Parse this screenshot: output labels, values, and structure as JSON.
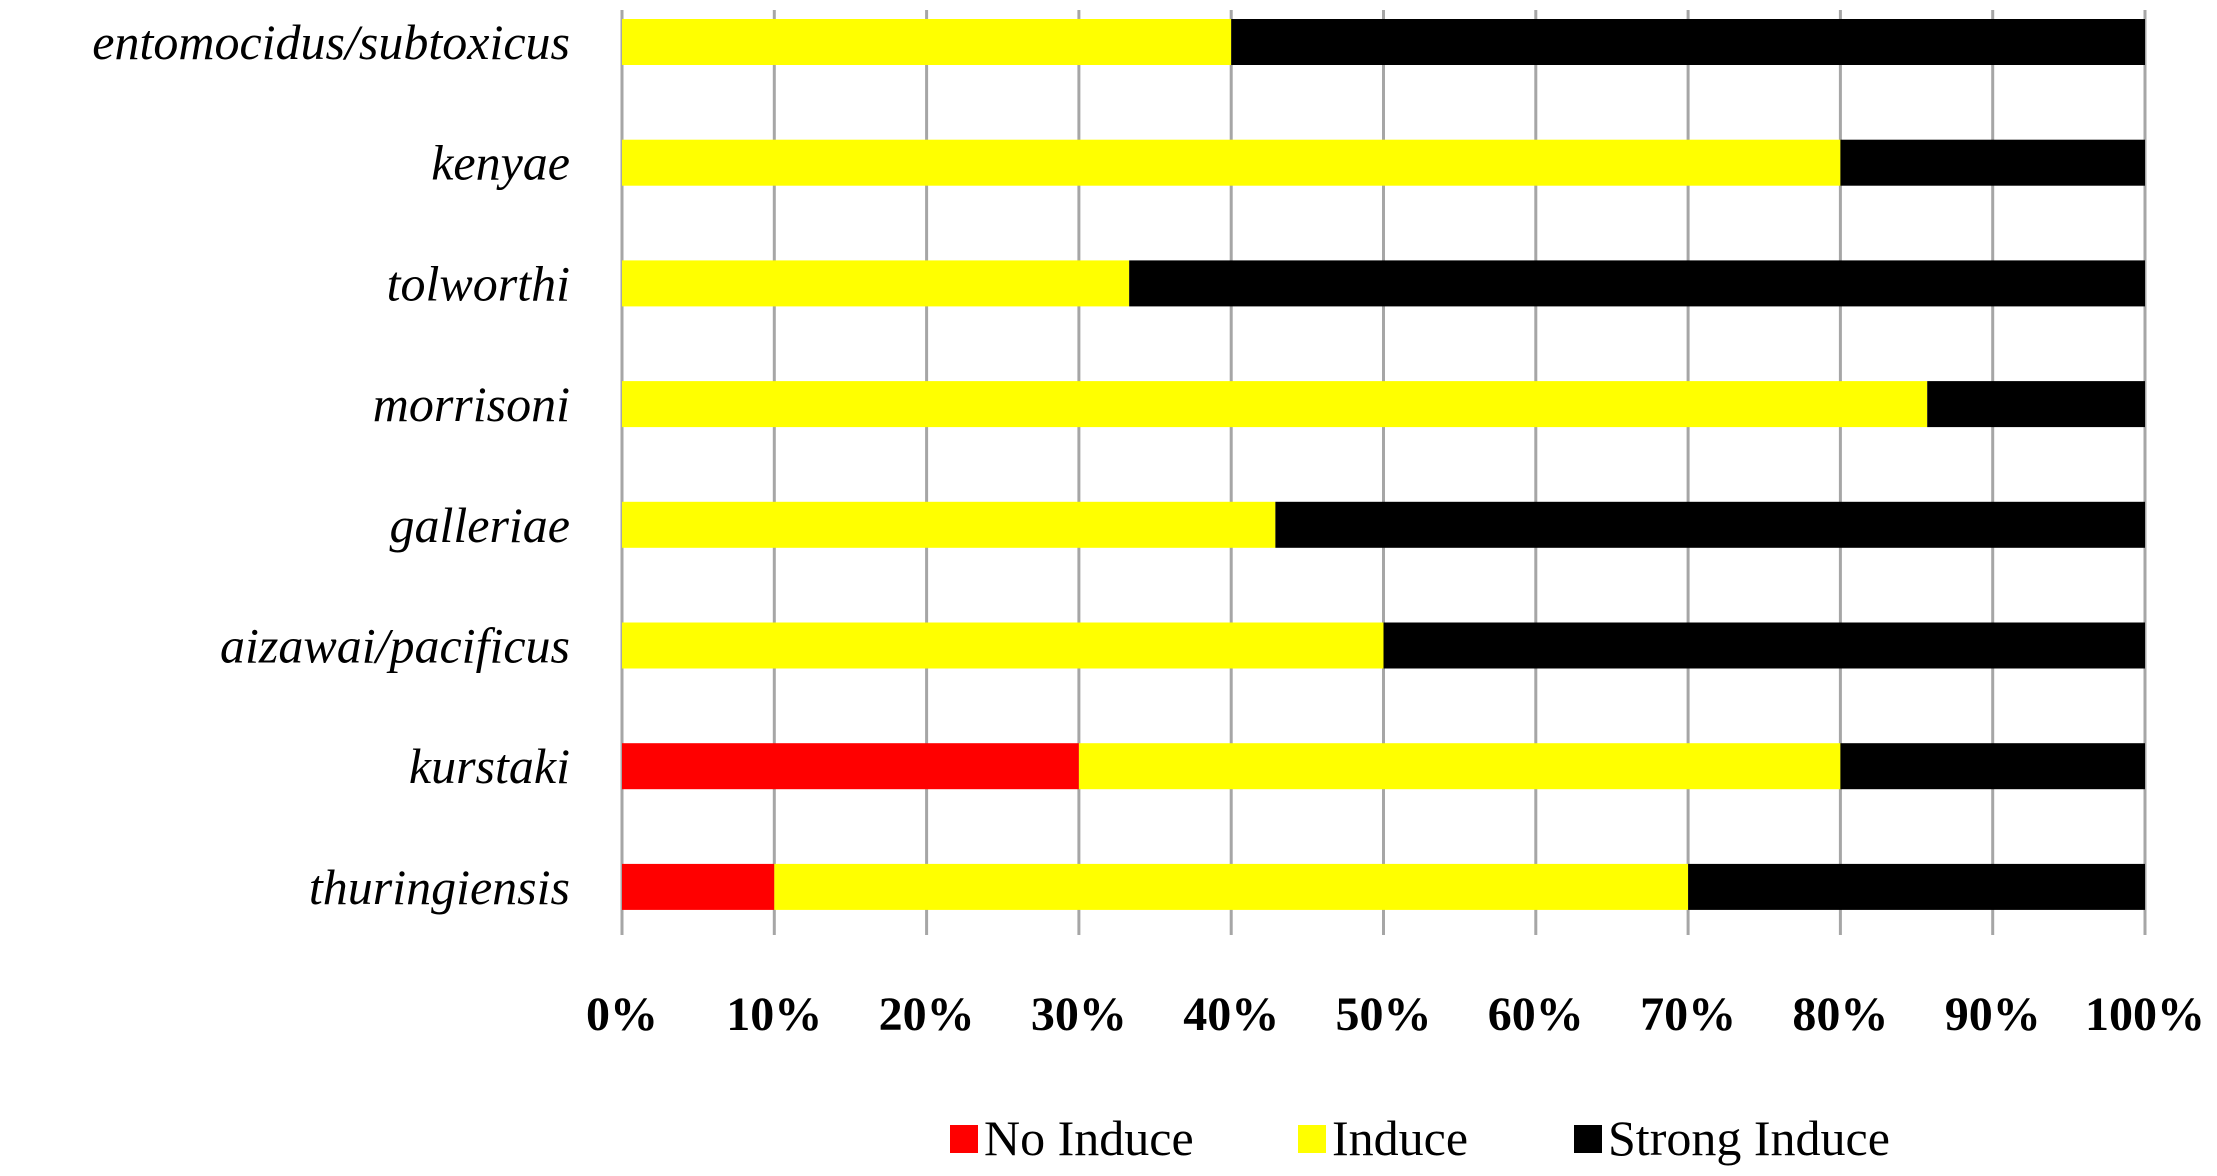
{
  "chart_data": {
    "type": "bar",
    "orientation": "horizontal",
    "stacked": true,
    "percent_stacked": true,
    "categories": [
      "entomocidus/subtoxicus",
      "kenyae",
      "tolworthi",
      "morrisoni",
      "galleriae",
      "aizawai/pacificus",
      "kurstaki",
      "thuringiensis"
    ],
    "series": [
      {
        "name": "No Induce",
        "color": "#ff0000",
        "values": [
          0,
          0,
          0,
          0,
          0,
          0,
          30,
          10
        ]
      },
      {
        "name": "Induce",
        "color": "#ffff00",
        "values": [
          40,
          80,
          33.3,
          85.7,
          42.9,
          50,
          50,
          60
        ]
      },
      {
        "name": "Strong Induce",
        "color": "#000000",
        "values": [
          60,
          20,
          66.7,
          14.3,
          57.1,
          50,
          20,
          30
        ]
      }
    ],
    "xlim": [
      0,
      100
    ],
    "x_ticks": [
      "0%",
      "10%",
      "20%",
      "30%",
      "40%",
      "50%",
      "60%",
      "70%",
      "80%",
      "90%",
      "100%"
    ],
    "xlabel": "",
    "ylabel": "",
    "title": "",
    "grid": "vertical",
    "legend_position": "bottom"
  }
}
